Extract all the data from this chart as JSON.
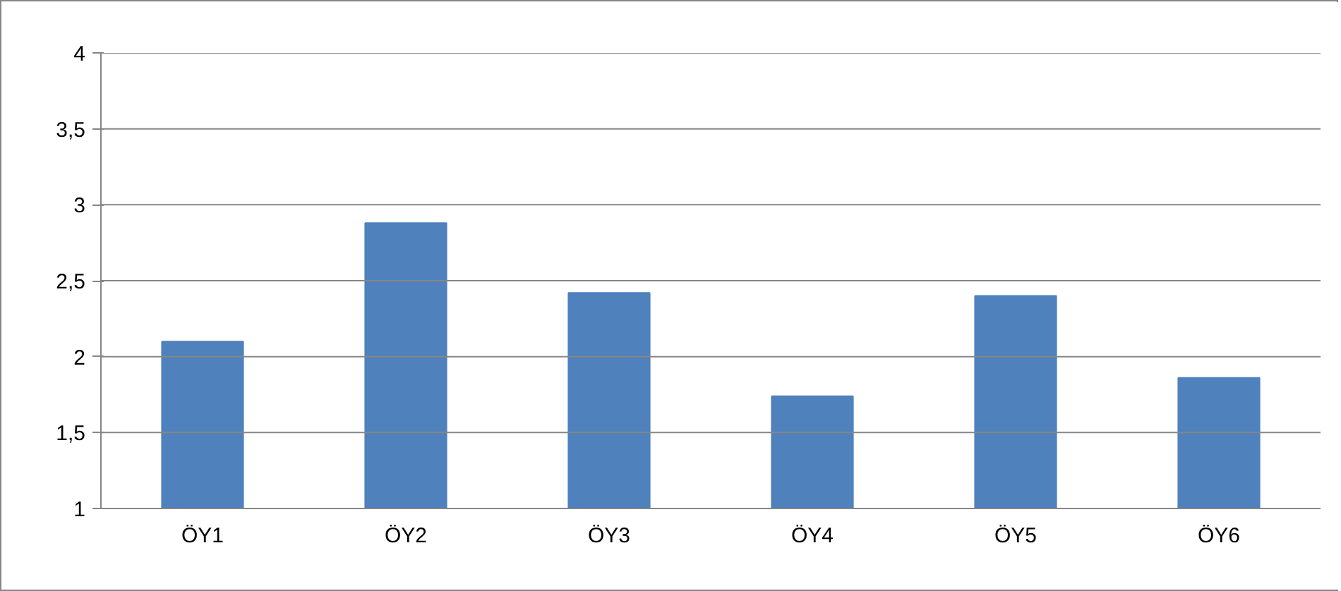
{
  "chart_data": {
    "type": "bar",
    "categories": [
      "ÖY1",
      "ÖY2",
      "ÖY3",
      "ÖY4",
      "ÖY5",
      "ÖY6"
    ],
    "values": [
      2.1,
      2.88,
      2.42,
      1.74,
      2.4,
      1.86
    ],
    "color": "#4f81bd",
    "ylim": [
      1,
      4
    ],
    "yticks": [
      1,
      {
        "value": 1.5,
        "label": "1,5"
      },
      2,
      {
        "value": 2.5,
        "label": "2,5"
      },
      3,
      {
        "value": 3.5,
        "label": "3,5"
      },
      4
    ],
    "grid": "y"
  }
}
